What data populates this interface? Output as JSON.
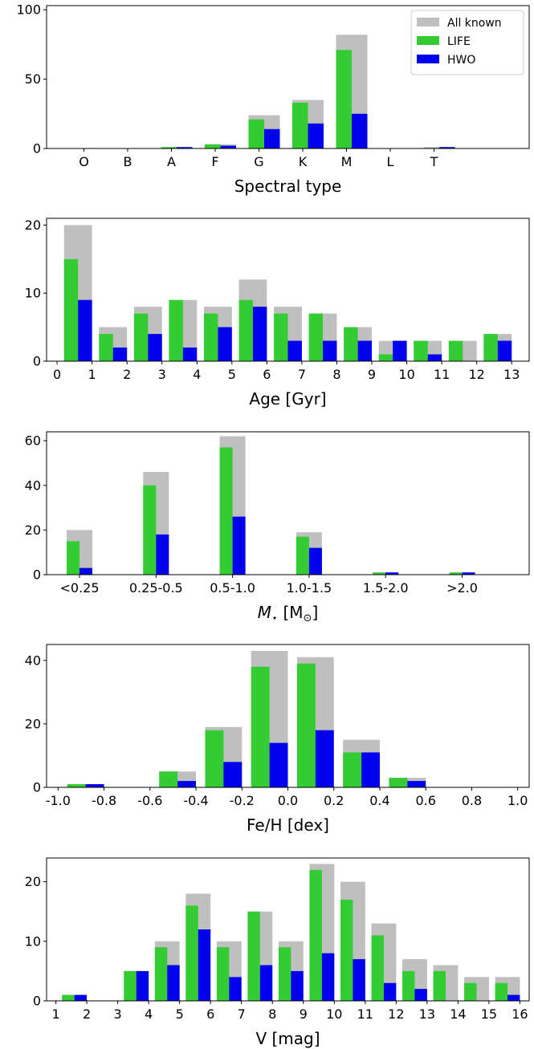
{
  "colors": {
    "all_known": "#bfbfbf",
    "life": "#33cc33",
    "hwo": "#0000ee"
  },
  "chart_data": [
    {
      "type": "bar",
      "xlabel": "Spectral type",
      "ylim": [
        0,
        103
      ],
      "yticks": [
        0,
        50,
        100
      ],
      "categories": [
        "O",
        "B",
        "A",
        "F",
        "G",
        "K",
        "M",
        "L",
        "T"
      ],
      "legend": {
        "placement": "top-right",
        "entries": [
          "All known",
          "LIFE",
          "HWO"
        ]
      },
      "series": [
        {
          "name": "All known",
          "values": [
            0,
            0,
            1,
            3,
            24,
            35,
            82,
            0,
            1
          ]
        },
        {
          "name": "LIFE",
          "values": [
            0,
            0,
            1,
            3,
            21,
            33,
            71,
            0,
            0
          ]
        },
        {
          "name": "HWO",
          "values": [
            0,
            0,
            1,
            2,
            14,
            18,
            25,
            0,
            1
          ]
        }
      ]
    },
    {
      "type": "bar",
      "xlabel": "Age [Gyr]",
      "ylim": [
        0,
        21
      ],
      "yticks": [
        0,
        10,
        20
      ],
      "xlim": [
        -0.3,
        13.5
      ],
      "xticks": [
        0,
        1,
        2,
        3,
        4,
        5,
        6,
        7,
        8,
        9,
        10,
        11,
        12,
        13
      ],
      "bin_starts": [
        0,
        1,
        2,
        3,
        4,
        5,
        6,
        7,
        8,
        9,
        10,
        11,
        12
      ],
      "bin_width": 1,
      "series": [
        {
          "name": "All known",
          "values": [
            20,
            5,
            8,
            9,
            8,
            12,
            8,
            7,
            5,
            3,
            3,
            3,
            4
          ]
        },
        {
          "name": "LIFE",
          "values": [
            15,
            4,
            7,
            9,
            7,
            9,
            7,
            7,
            5,
            1,
            3,
            3,
            4
          ]
        },
        {
          "name": "HWO",
          "values": [
            9,
            2,
            4,
            2,
            5,
            8,
            3,
            3,
            3,
            3,
            1,
            0,
            3
          ]
        }
      ]
    },
    {
      "type": "bar",
      "xlabel_pre": "M",
      "xlabel_sub1": "⋆",
      "xlabel_mid": "  [M",
      "xlabel_sub2": "⊙",
      "xlabel_post": "]",
      "ylim": [
        0,
        64
      ],
      "yticks": [
        0,
        20,
        40,
        60
      ],
      "categories": [
        "<0.25",
        "0.25-0.5",
        "0.5-1.0",
        "1.0-1.5",
        "1.5-2.0",
        ">2.0"
      ],
      "series": [
        {
          "name": "All known",
          "values": [
            20,
            46,
            62,
            19,
            1,
            1
          ]
        },
        {
          "name": "LIFE",
          "values": [
            15,
            40,
            57,
            17,
            1,
            1
          ]
        },
        {
          "name": "HWO",
          "values": [
            3,
            18,
            26,
            12,
            1,
            1
          ]
        }
      ]
    },
    {
      "type": "bar",
      "xlabel": "Fe/H [dex]",
      "ylim": [
        0,
        45
      ],
      "yticks": [
        0,
        20,
        40
      ],
      "xlim": [
        -1.05,
        1.05
      ],
      "xticks": [
        "-1.0",
        "-0.8",
        "-0.6",
        "-0.4",
        "-0.2",
        "0.0",
        "0.2",
        "0.4",
        "0.6",
        "0.8",
        "1.0"
      ],
      "bin_starts": [
        -1.0,
        -0.8,
        -0.6,
        -0.4,
        -0.2,
        0.0,
        0.2,
        0.4,
        0.6,
        0.8
      ],
      "bin_width": 0.2,
      "series": [
        {
          "name": "All known",
          "values": [
            1,
            0,
            5,
            19,
            43,
            41,
            15,
            3,
            0,
            0
          ]
        },
        {
          "name": "LIFE",
          "values": [
            1,
            0,
            5,
            18,
            38,
            39,
            11,
            3,
            0,
            0
          ]
        },
        {
          "name": "HWO",
          "values": [
            1,
            0,
            2,
            8,
            14,
            18,
            11,
            2,
            0,
            0
          ]
        }
      ]
    },
    {
      "type": "bar",
      "xlabel": "V [mag]",
      "ylim": [
        0,
        24
      ],
      "yticks": [
        0,
        10,
        20
      ],
      "xlim": [
        0.7,
        16.3
      ],
      "xticks": [
        1,
        2,
        3,
        4,
        5,
        6,
        7,
        8,
        9,
        10,
        11,
        12,
        13,
        14,
        15,
        16
      ],
      "bin_starts": [
        1,
        2,
        3,
        4,
        5,
        6,
        7,
        8,
        9,
        10,
        11,
        12,
        13,
        14,
        15
      ],
      "bin_width": 1,
      "series": [
        {
          "name": "All known",
          "values": [
            1,
            0,
            5,
            10,
            18,
            10,
            15,
            10,
            23,
            20,
            13,
            7,
            6,
            4,
            4
          ]
        },
        {
          "name": "LIFE",
          "values": [
            1,
            0,
            5,
            9,
            16,
            9,
            15,
            9,
            22,
            17,
            11,
            5,
            5,
            3,
            3
          ]
        },
        {
          "name": "HWO",
          "values": [
            1,
            0,
            5,
            6,
            12,
            4,
            6,
            5,
            8,
            7,
            3,
            2,
            0,
            0,
            1
          ]
        }
      ]
    }
  ]
}
